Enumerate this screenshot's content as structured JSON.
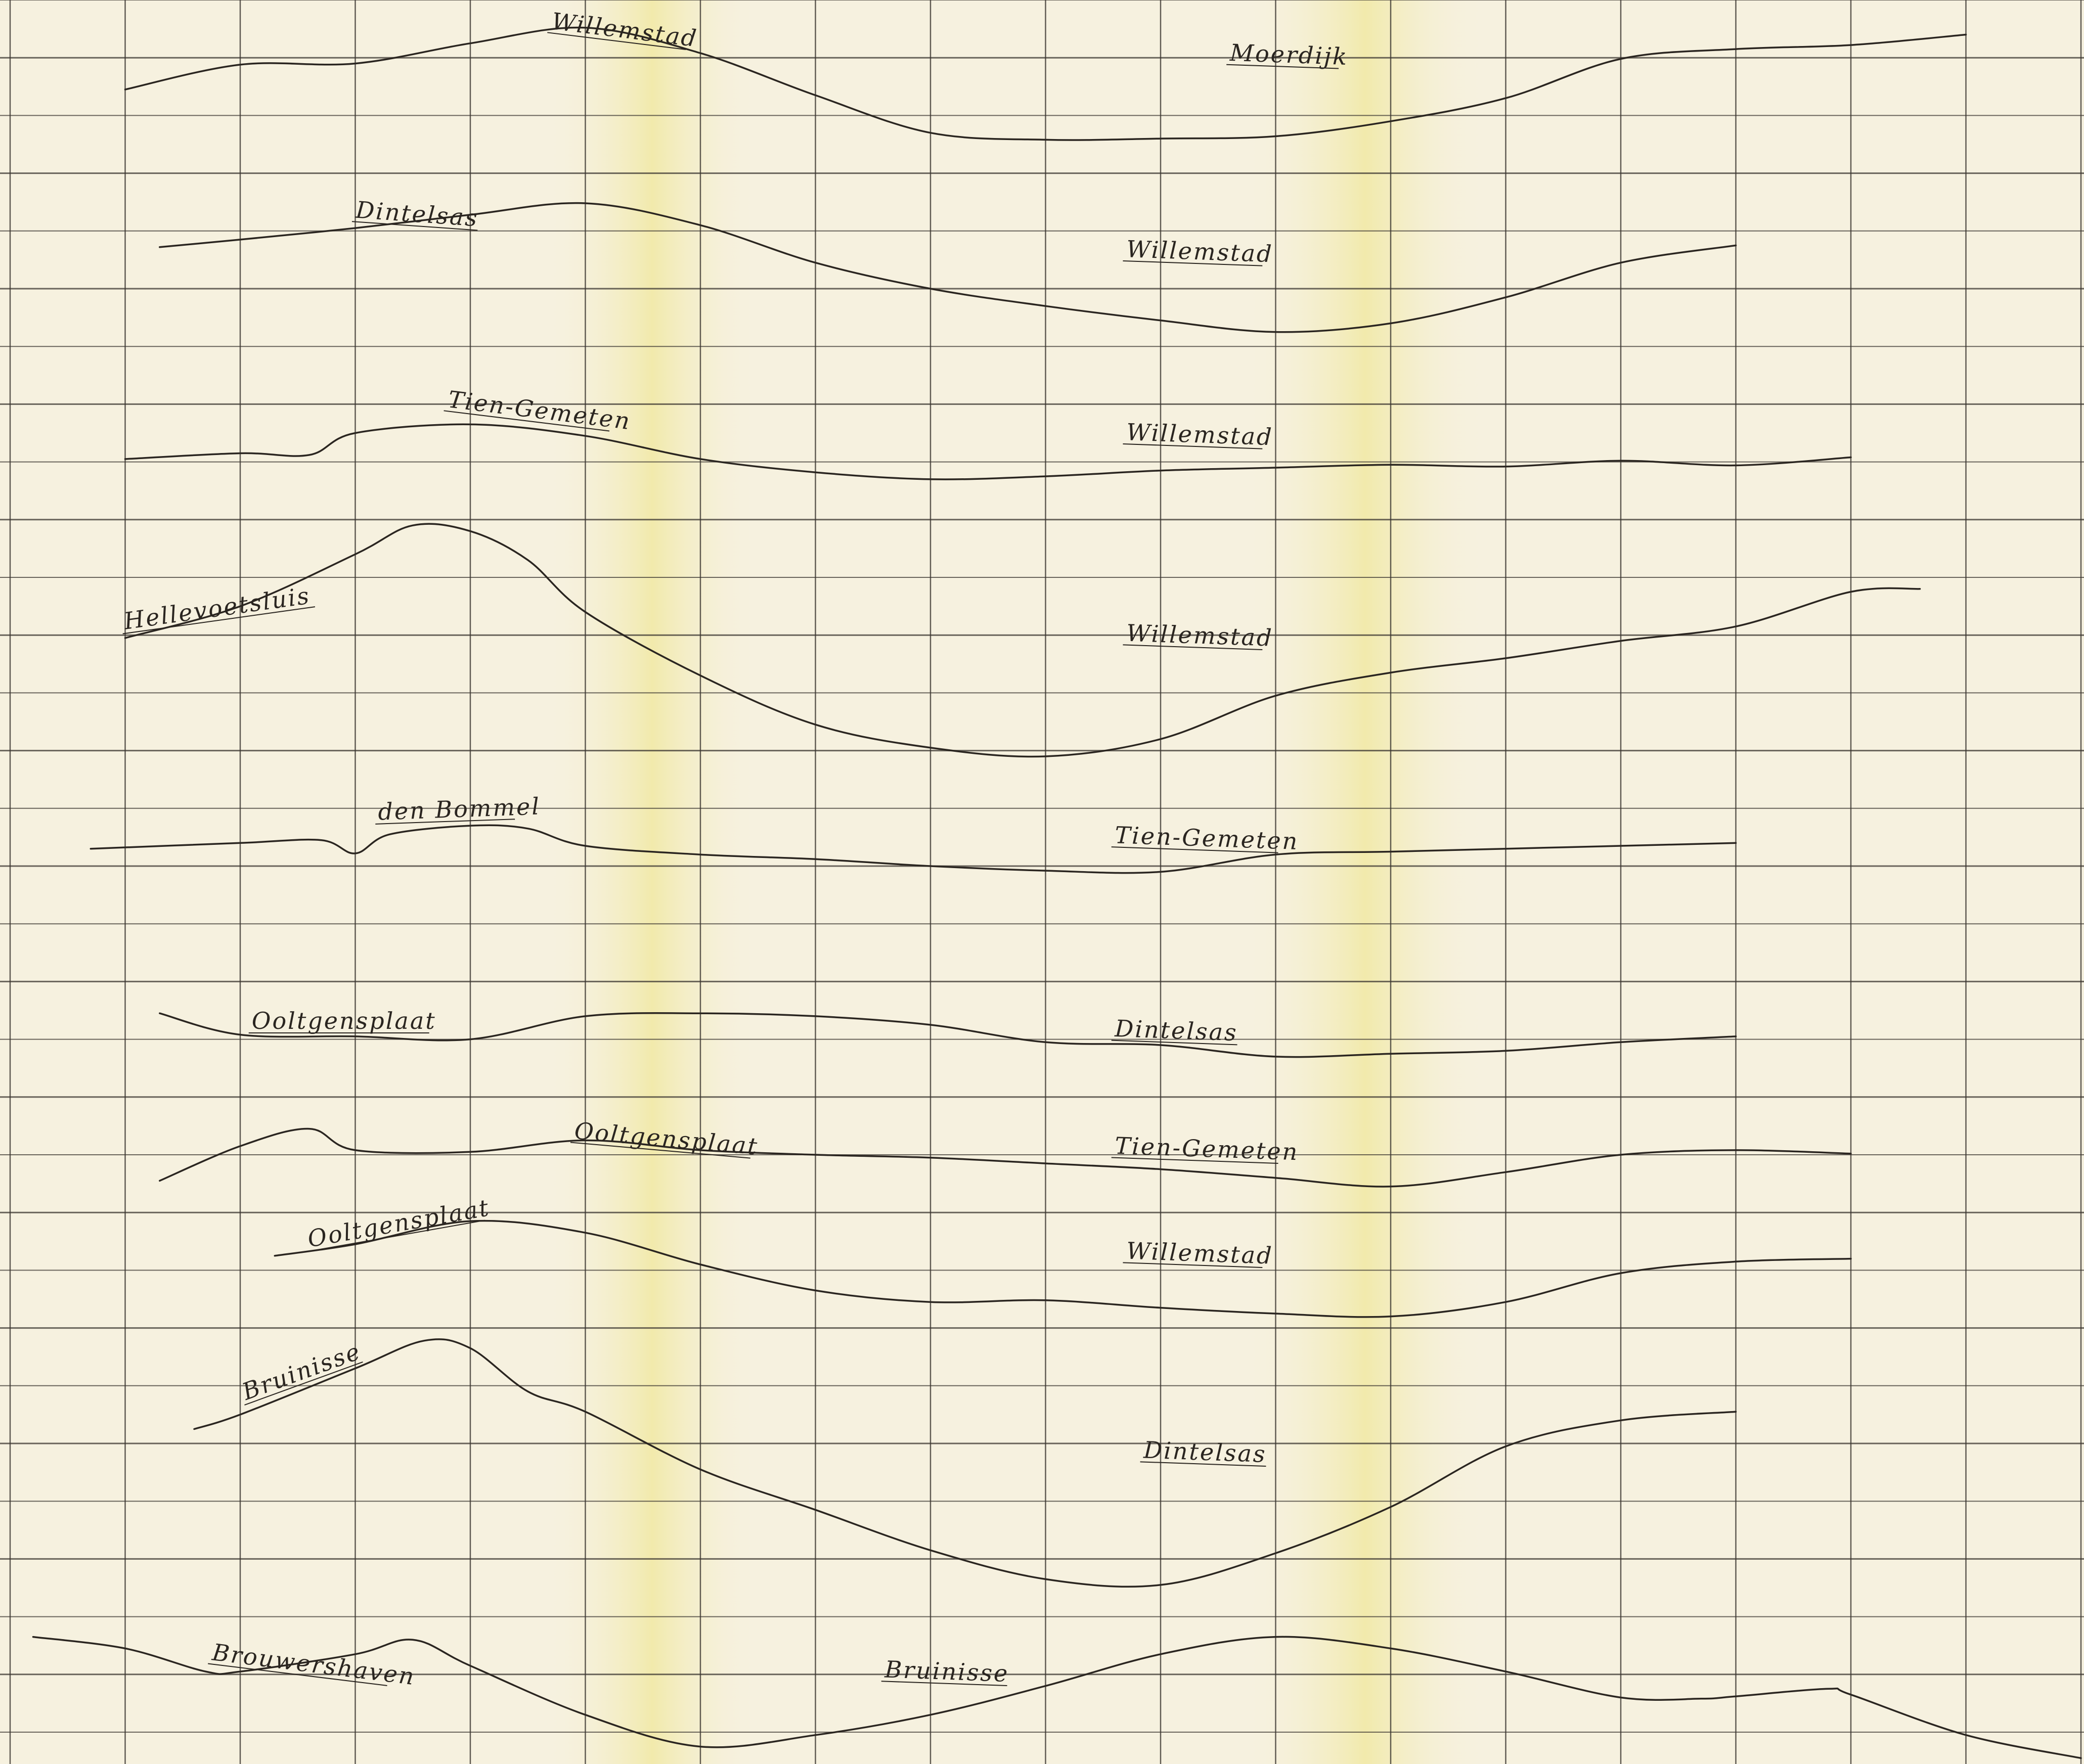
{
  "chart_data": {
    "type": "line",
    "title": "",
    "xlabel": "",
    "ylabel": "",
    "grid": true,
    "colors": {
      "paper": "#f6f1df",
      "paper_glow": "#f3ecb8",
      "grid": "#3a3530",
      "ink": "#2a2520"
    },
    "lines": [
      {
        "labels": [
          {
            "text": "Willemstad",
            "x": 4.7,
            "y": 0.5,
            "angle": 7
          },
          {
            "text": "Moerdijk",
            "x": 10.6,
            "y": 1.05,
            "angle": 2
          }
        ],
        "points": [
          [
            1,
            1.55
          ],
          [
            2,
            1.12
          ],
          [
            3,
            1.1
          ],
          [
            4,
            0.75
          ],
          [
            5,
            0.48
          ],
          [
            6,
            0.92
          ],
          [
            7,
            1.65
          ],
          [
            8,
            2.3
          ],
          [
            9,
            2.42
          ],
          [
            10,
            2.4
          ],
          [
            11,
            2.36
          ],
          [
            12,
            2.1
          ],
          [
            13,
            1.7
          ],
          [
            14,
            1.02
          ],
          [
            15,
            0.85
          ],
          [
            16,
            0.78
          ],
          [
            17,
            0.6
          ]
        ]
      },
      {
        "labels": [
          {
            "text": "Dintelsas",
            "x": 3.0,
            "y": 3.77,
            "angle": 4
          },
          {
            "text": "Willemstad",
            "x": 9.7,
            "y": 4.45,
            "angle": 2
          }
        ],
        "points": [
          [
            1.3,
            4.28
          ],
          [
            2,
            4.15
          ],
          [
            3,
            3.95
          ],
          [
            4,
            3.72
          ],
          [
            5,
            3.52
          ],
          [
            6,
            3.9
          ],
          [
            7,
            4.55
          ],
          [
            8,
            5.0
          ],
          [
            9,
            5.3
          ],
          [
            10,
            5.55
          ],
          [
            11,
            5.75
          ],
          [
            12,
            5.6
          ],
          [
            13,
            5.15
          ],
          [
            14,
            4.55
          ],
          [
            15,
            4.25
          ]
        ]
      },
      {
        "labels": [
          {
            "text": "Tien-Gemeten",
            "x": 3.8,
            "y": 7.05,
            "angle": 7
          },
          {
            "text": "Willemstad",
            "x": 9.7,
            "y": 7.62,
            "angle": 2
          }
        ],
        "points": [
          [
            1,
            7.95
          ],
          [
            2,
            7.85
          ],
          [
            2.6,
            7.88
          ],
          [
            3,
            7.5
          ],
          [
            4,
            7.35
          ],
          [
            5,
            7.55
          ],
          [
            6,
            7.95
          ],
          [
            7,
            8.18
          ],
          [
            8,
            8.3
          ],
          [
            9,
            8.25
          ],
          [
            10,
            8.15
          ],
          [
            11,
            8.1
          ],
          [
            12,
            8.05
          ],
          [
            13,
            8.08
          ],
          [
            14,
            7.98
          ],
          [
            15,
            8.06
          ],
          [
            16,
            7.92
          ]
        ]
      },
      {
        "labels": [
          {
            "text": "Hellevoetsluis",
            "x": 1.0,
            "y": 10.9,
            "angle": -8
          },
          {
            "text": "Willemstad",
            "x": 9.7,
            "y": 11.1,
            "angle": 2
          }
        ],
        "points": [
          [
            1,
            11.05
          ],
          [
            2,
            10.5
          ],
          [
            3,
            9.6
          ],
          [
            3.5,
            9.1
          ],
          [
            4,
            9.2
          ],
          [
            4.5,
            9.7
          ],
          [
            5,
            10.6
          ],
          [
            6,
            11.7
          ],
          [
            7,
            12.55
          ],
          [
            8,
            12.95
          ],
          [
            9,
            13.1
          ],
          [
            10,
            12.8
          ],
          [
            11,
            12.05
          ],
          [
            12,
            11.65
          ],
          [
            13,
            11.4
          ],
          [
            14,
            11.1
          ],
          [
            15,
            10.85
          ],
          [
            16,
            10.25
          ],
          [
            16.6,
            10.2
          ]
        ]
      },
      {
        "labels": [
          {
            "text": "den Bommel",
            "x": 3.2,
            "y": 14.2,
            "angle": -2
          },
          {
            "text": "Tien-Gemeten",
            "x": 9.6,
            "y": 14.6,
            "angle": 2
          }
        ],
        "points": [
          [
            0.7,
            14.7
          ],
          [
            2,
            14.6
          ],
          [
            2.7,
            14.55
          ],
          [
            3,
            14.78
          ],
          [
            3.3,
            14.45
          ],
          [
            4,
            14.3
          ],
          [
            4.5,
            14.35
          ],
          [
            5,
            14.65
          ],
          [
            6,
            14.8
          ],
          [
            7,
            14.88
          ],
          [
            8,
            15.0
          ],
          [
            9,
            15.08
          ],
          [
            10,
            15.1
          ],
          [
            11,
            14.8
          ],
          [
            12,
            14.75
          ],
          [
            13,
            14.7
          ],
          [
            14,
            14.65
          ],
          [
            15,
            14.6
          ]
        ]
      },
      {
        "labels": [
          {
            "text": "Ooltgensplaat",
            "x": 2.1,
            "y": 17.82,
            "angle": 0
          },
          {
            "text": "Dintelsas",
            "x": 9.6,
            "y": 17.95,
            "angle": 2
          }
        ],
        "points": [
          [
            1.3,
            17.55
          ],
          [
            2,
            17.92
          ],
          [
            3,
            17.95
          ],
          [
            4,
            18.0
          ],
          [
            5,
            17.6
          ],
          [
            6,
            17.55
          ],
          [
            7,
            17.6
          ],
          [
            8,
            17.75
          ],
          [
            9,
            18.05
          ],
          [
            10,
            18.1
          ],
          [
            11,
            18.3
          ],
          [
            12,
            18.25
          ],
          [
            13,
            18.2
          ],
          [
            14,
            18.05
          ],
          [
            15,
            17.95
          ]
        ]
      },
      {
        "labels": [
          {
            "text": "Ooltgensplaat",
            "x": 4.9,
            "y": 19.72,
            "angle": 5
          },
          {
            "text": "Tien-Gemeten",
            "x": 9.6,
            "y": 19.98,
            "angle": 2
          }
        ],
        "points": [
          [
            1.3,
            20.45
          ],
          [
            2,
            19.85
          ],
          [
            2.6,
            19.55
          ],
          [
            3,
            19.92
          ],
          [
            4,
            19.95
          ],
          [
            5,
            19.75
          ],
          [
            6,
            19.92
          ],
          [
            7,
            20.0
          ],
          [
            8,
            20.05
          ],
          [
            9,
            20.15
          ],
          [
            10,
            20.25
          ],
          [
            11,
            20.4
          ],
          [
            12,
            20.55
          ],
          [
            13,
            20.3
          ],
          [
            14,
            20.0
          ],
          [
            15,
            19.92
          ],
          [
            16,
            19.98
          ]
        ]
      },
      {
        "labels": [
          {
            "text": "Ooltgensplaat",
            "x": 2.6,
            "y": 21.6,
            "angle": -10
          },
          {
            "text": "Willemstad",
            "x": 9.7,
            "y": 21.8,
            "angle": 2
          }
        ],
        "points": [
          [
            2.3,
            21.75
          ],
          [
            3,
            21.55
          ],
          [
            4,
            21.15
          ],
          [
            5,
            21.35
          ],
          [
            6,
            21.9
          ],
          [
            7,
            22.35
          ],
          [
            8,
            22.55
          ],
          [
            9,
            22.52
          ],
          [
            10,
            22.65
          ],
          [
            11,
            22.75
          ],
          [
            12,
            22.8
          ],
          [
            13,
            22.55
          ],
          [
            14,
            22.05
          ],
          [
            15,
            21.85
          ],
          [
            16,
            21.8
          ]
        ]
      },
      {
        "labels": [
          {
            "text": "Bruinisse",
            "x": 2.05,
            "y": 24.25,
            "angle": -20
          },
          {
            "text": "Dintelsas",
            "x": 9.85,
            "y": 25.25,
            "angle": 2
          }
        ],
        "points": [
          [
            1.6,
            24.75
          ],
          [
            2,
            24.5
          ],
          [
            3,
            23.7
          ],
          [
            3.6,
            23.22
          ],
          [
            4,
            23.35
          ],
          [
            4.5,
            24.1
          ],
          [
            5,
            24.45
          ],
          [
            6,
            25.45
          ],
          [
            7,
            26.15
          ],
          [
            8,
            26.85
          ],
          [
            9,
            27.35
          ],
          [
            10,
            27.45
          ],
          [
            11,
            26.9
          ],
          [
            12,
            26.1
          ],
          [
            13,
            25.05
          ],
          [
            14,
            24.6
          ],
          [
            15,
            24.45
          ]
        ]
      },
      {
        "labels": [
          {
            "text": "Brouwershaven",
            "x": 1.75,
            "y": 28.75,
            "angle": 7
          },
          {
            "text": "Bruinisse",
            "x": 7.6,
            "y": 29.05,
            "angle": 2
          }
        ],
        "points": [
          [
            0.2,
            28.35
          ],
          [
            1,
            28.55
          ],
          [
            1.7,
            28.95
          ],
          [
            2,
            28.95
          ],
          [
            3,
            28.65
          ],
          [
            3.5,
            28.4
          ],
          [
            4,
            28.85
          ],
          [
            5,
            29.7
          ],
          [
            6,
            30.25
          ],
          [
            7,
            30.05
          ],
          [
            8,
            29.7
          ],
          [
            9,
            29.2
          ],
          [
            10,
            28.65
          ],
          [
            11,
            28.35
          ],
          [
            12,
            28.55
          ],
          [
            13,
            28.95
          ],
          [
            14,
            29.4
          ],
          [
            14.7,
            29.42
          ],
          [
            15,
            29.38
          ],
          [
            15.8,
            29.25
          ],
          [
            16,
            29.35
          ],
          [
            17,
            30.05
          ],
          [
            18,
            30.45
          ]
        ]
      }
    ]
  }
}
